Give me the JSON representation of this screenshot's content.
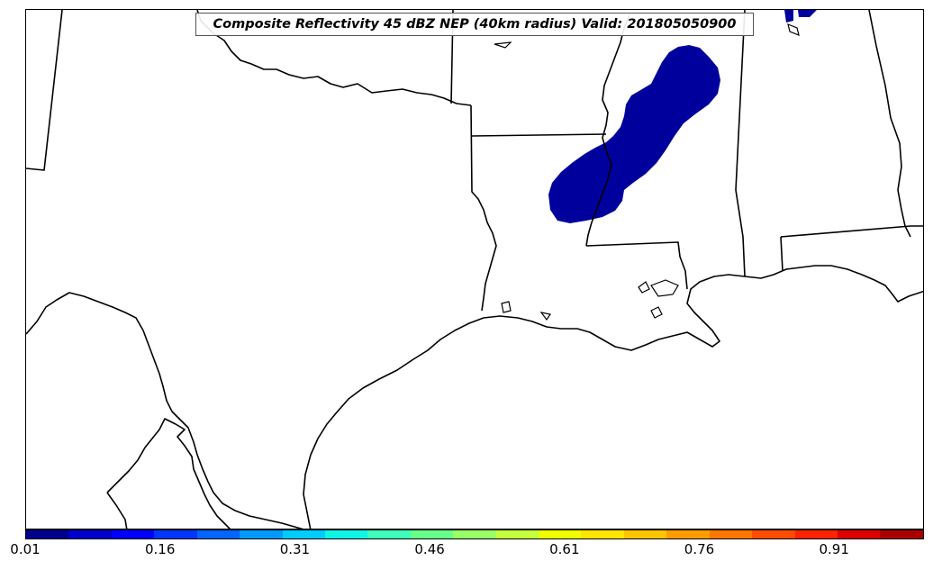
{
  "map": {
    "title": "Composite Reflectivity 45 dBZ NEP (40km radius) Valid: 201805050900",
    "region": "South-central United States and northern Mexico",
    "background_color": "#ffffff",
    "boundary_color": "#000000",
    "probability_fill_color": "#00009c"
  },
  "colorbar": {
    "colors": [
      "#00008f",
      "#0000cc",
      "#0000ff",
      "#0036ff",
      "#0066ff",
      "#0099ff",
      "#00ccff",
      "#0ff5e6",
      "#3dffbb",
      "#66ff8a",
      "#99ff66",
      "#c4ff3d",
      "#eeff00",
      "#ffe600",
      "#ffc400",
      "#ff9d00",
      "#ff7700",
      "#ff4d00",
      "#ff2300",
      "#dd0000",
      "#aa0000"
    ],
    "tick_labels": [
      "0.01",
      "0.16",
      "0.31",
      "0.46",
      "0.61",
      "0.76",
      "0.91"
    ],
    "tick_values": [
      0.01,
      0.16,
      0.31,
      0.46,
      0.61,
      0.76,
      0.91
    ],
    "range": [
      0.01,
      1.01
    ]
  }
}
